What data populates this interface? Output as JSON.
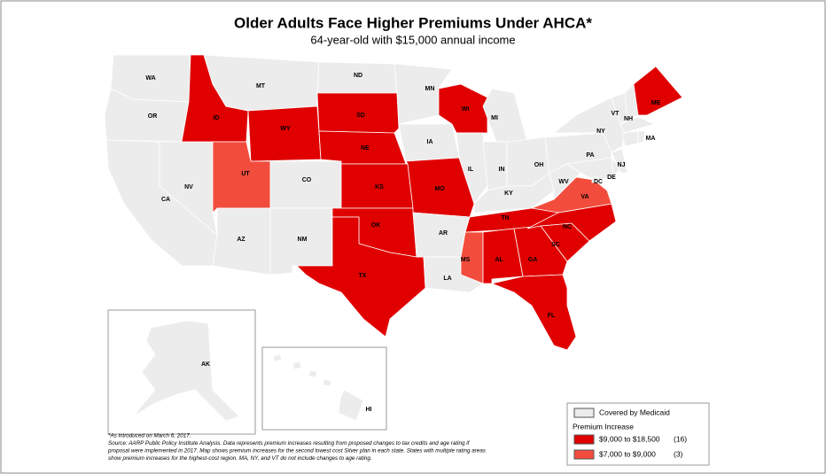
{
  "title": "Older Adults Face Higher Premiums Under AHCA*",
  "subtitle": "64-year-old with $15,000 annual income",
  "states": [
    {
      "abbr": "WA",
      "color": "#ececec"
    },
    {
      "abbr": "OR",
      "color": "#ececec"
    },
    {
      "abbr": "CA",
      "color": "#ececec"
    },
    {
      "abbr": "NV",
      "color": "#ececec"
    },
    {
      "abbr": "ID",
      "color": "#e00000"
    },
    {
      "abbr": "MT",
      "color": "#ececec"
    },
    {
      "abbr": "WY",
      "color": "#e00000"
    },
    {
      "abbr": "UT",
      "color": "#f24c3d"
    },
    {
      "abbr": "CO",
      "color": "#ececec"
    },
    {
      "abbr": "AZ",
      "color": "#ececec"
    },
    {
      "abbr": "NM",
      "color": "#ececec"
    },
    {
      "abbr": "ND",
      "color": "#ececec"
    },
    {
      "abbr": "SD",
      "color": "#e00000"
    },
    {
      "abbr": "NE",
      "color": "#e00000"
    },
    {
      "abbr": "KS",
      "color": "#e00000"
    },
    {
      "abbr": "OK",
      "color": "#e00000"
    },
    {
      "abbr": "TX",
      "color": "#e00000"
    },
    {
      "abbr": "MN",
      "color": "#ececec"
    },
    {
      "abbr": "IA",
      "color": "#ececec"
    },
    {
      "abbr": "MO",
      "color": "#e00000"
    },
    {
      "abbr": "AR",
      "color": "#ececec"
    },
    {
      "abbr": "LA",
      "color": "#ececec"
    },
    {
      "abbr": "WI",
      "color": "#e00000"
    },
    {
      "abbr": "IL",
      "color": "#ececec"
    },
    {
      "abbr": "MI",
      "color": "#ececec"
    },
    {
      "abbr": "IN",
      "color": "#ececec"
    },
    {
      "abbr": "OH",
      "color": "#ececec"
    },
    {
      "abbr": "KY",
      "color": "#ececec"
    },
    {
      "abbr": "TN",
      "color": "#e00000"
    },
    {
      "abbr": "MS",
      "color": "#f24c3d"
    },
    {
      "abbr": "AL",
      "color": "#e00000"
    },
    {
      "abbr": "GA",
      "color": "#e00000"
    },
    {
      "abbr": "FL",
      "color": "#e00000"
    },
    {
      "abbr": "SC",
      "color": "#e00000"
    },
    {
      "abbr": "NC",
      "color": "#e00000"
    },
    {
      "abbr": "VA",
      "color": "#f24c3d"
    },
    {
      "abbr": "WV",
      "color": "#ececec"
    },
    {
      "abbr": "PA",
      "color": "#ececec"
    },
    {
      "abbr": "NY",
      "color": "#ececec"
    },
    {
      "abbr": null,
      "color": "#ececec"
    },
    {
      "abbr": "DE",
      "color": "#ececec"
    },
    {
      "abbr": "NJ",
      "color": "#ececec"
    },
    {
      "abbr": "VT",
      "color": "#ececec"
    },
    {
      "abbr": "NH",
      "color": "#ececec"
    },
    {
      "abbr": "MA",
      "color": "#ececec"
    },
    {
      "abbr": null,
      "color": "#ececec"
    },
    {
      "abbr": null,
      "color": "#ececec"
    },
    {
      "abbr": "ME",
      "color": "#e00000"
    },
    {
      "abbr": "DC",
      "color": "#ececec"
    },
    {
      "abbr": "AK",
      "color": "#ececec"
    },
    {
      "abbr": "HI",
      "color": "#ececec"
    }
  ],
  "legend": {
    "medicaid": {
      "label": "Covered by Medicaid",
      "color": "#ececec"
    },
    "heading": "Premium Increase",
    "ranges": [
      {
        "label": "$9,000 to $18,500",
        "count": "(16)",
        "color": "#e00000"
      },
      {
        "label": "$7,000 to $9,000",
        "count": "(3)",
        "color": "#f24c3d"
      }
    ]
  },
  "footnote": [
    "*As introduced on March 6, 2017.",
    "Source:  AARP Public Policy Institute Analysis. Data represents premium increases resulting from proposed changes to tax credits and age rating if",
    "proposal were implemented in 2017. Map shows premium increases for the second lowest cost Silver plan in each state. States with multiple rating areas",
    "show premium increases for the highest-cost region. MA, NY, and VT do not include changes to age rating."
  ]
}
